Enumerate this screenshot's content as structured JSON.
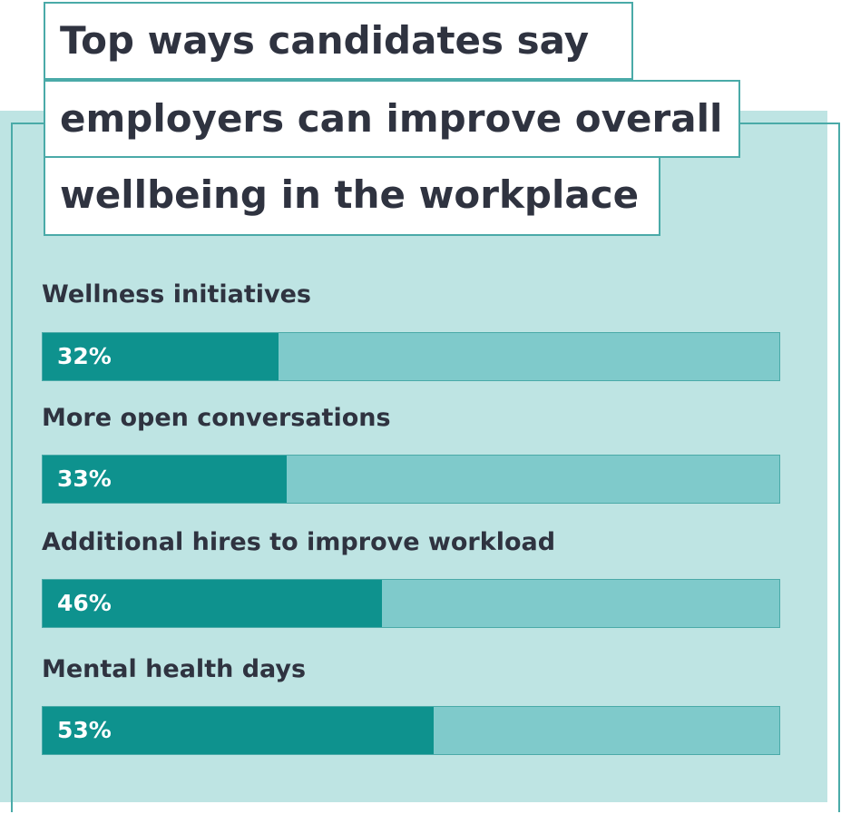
{
  "title_lines": [
    "Top ways candidates say",
    "employers can improve overall",
    "wellbeing in the workplace"
  ],
  "colors": {
    "panel_bg": "#bee4e3",
    "outline": "#4aaaa8",
    "bar_fill": "#0e928e",
    "bar_track": "#7fcacb",
    "text": "#2f3340"
  },
  "chart_data": {
    "type": "bar",
    "orientation": "horizontal",
    "title": "Top ways candidates say employers can improve overall wellbeing in the workplace",
    "categories": [
      "Wellness initiatives",
      "More open conversations",
      "Additional hires to improve workload",
      "Mental health days"
    ],
    "values": [
      32,
      33,
      46,
      53
    ],
    "value_labels": [
      "32%",
      "33%",
      "46%",
      "53%"
    ],
    "xlim": [
      0,
      100
    ],
    "grid": false
  }
}
